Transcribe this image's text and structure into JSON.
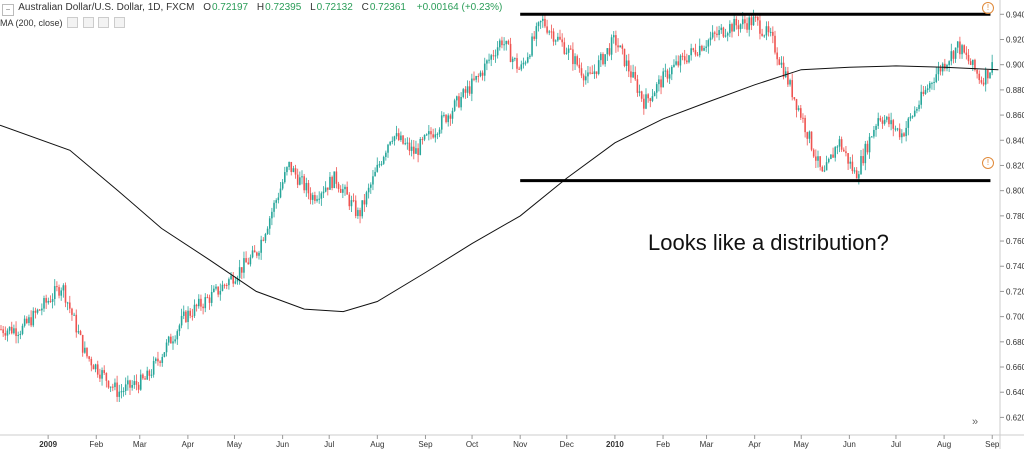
{
  "header": {
    "symbol_title": "Australian Dollar/U.S. Dollar, 1D, FXCM",
    "open_label": "O",
    "open_value": "0.72197",
    "high_label": "H",
    "high_value": "0.72395",
    "low_label": "L",
    "low_value": "0.72132",
    "close_label": "C",
    "close_value": "0.72361",
    "change": "+0.00164 (+0.23%)"
  },
  "indicator": {
    "label": "MA (200, close)"
  },
  "colors": {
    "up": "#26a69a",
    "down": "#ef5350",
    "ma": "#111111",
    "level_line": "#000000",
    "header_value": "#2a9d58"
  },
  "chart_data": {
    "type": "candlestick",
    "title": "Australian Dollar/U.S. Dollar, 1D, FXCM",
    "ylim": [
      0.61,
      0.945
    ],
    "y_ticks": [
      "0.94000",
      "0.92000",
      "0.90000",
      "0.88000",
      "0.86000",
      "0.84000",
      "0.82000",
      "0.80000",
      "0.78000",
      "0.76000",
      "0.74000",
      "0.72000",
      "0.70000",
      "0.68000",
      "0.66000",
      "0.64000",
      "0.62000"
    ],
    "y_tick_values": [
      0.94,
      0.92,
      0.9,
      0.88,
      0.86,
      0.84,
      0.82,
      0.8,
      0.78,
      0.76,
      0.74,
      0.72,
      0.7,
      0.68,
      0.66,
      0.64,
      0.62
    ],
    "x_ticks": [
      "2009",
      "Feb",
      "Mar",
      "Apr",
      "May",
      "Jun",
      "Jul",
      "Aug",
      "Sep",
      "Oct",
      "Nov",
      "Dec",
      "2010",
      "Feb",
      "Mar",
      "Apr",
      "May",
      "Jun",
      "Jul",
      "Aug",
      "Sep"
    ],
    "x_bold": [
      "2009",
      "2010"
    ],
    "price_path_dates": [
      "2008-12-15",
      "2009-01-10",
      "2009-01-25",
      "2009-02-15",
      "2009-03-05",
      "2009-03-30",
      "2009-04-20",
      "2009-05-15",
      "2009-06-05",
      "2009-06-20",
      "2009-07-05",
      "2009-07-20",
      "2009-08-10",
      "2009-08-25",
      "2009-09-15",
      "2009-10-05",
      "2009-10-20",
      "2009-11-01",
      "2009-11-15",
      "2009-12-01",
      "2009-12-15",
      "2010-01-01",
      "2010-01-20",
      "2010-02-05",
      "2010-02-25",
      "2010-03-15",
      "2010-04-01",
      "2010-04-12",
      "2010-05-01",
      "2010-05-15",
      "2010-05-25",
      "2010-06-05",
      "2010-06-20",
      "2010-07-05",
      "2010-07-25",
      "2010-08-10",
      "2010-08-25",
      "2010-09-05"
    ],
    "price_path_values": [
      0.69,
      0.725,
      0.67,
      0.64,
      0.65,
      0.7,
      0.72,
      0.75,
      0.82,
      0.795,
      0.81,
      0.78,
      0.845,
      0.83,
      0.86,
      0.89,
      0.92,
      0.895,
      0.935,
      0.912,
      0.888,
      0.92,
      0.87,
      0.895,
      0.915,
      0.93,
      0.935,
      0.92,
      0.86,
      0.81,
      0.84,
      0.812,
      0.86,
      0.845,
      0.89,
      0.915,
      0.888,
      0.905
    ],
    "ma_label": "MA (200, close)",
    "ma_dates": [
      "2008-12-01",
      "2009-01-15",
      "2009-02-15",
      "2009-03-15",
      "2009-04-15",
      "2009-05-15",
      "2009-06-15",
      "2009-07-10",
      "2009-08-01",
      "2009-09-01",
      "2009-10-01",
      "2009-11-01",
      "2009-12-01",
      "2010-01-01",
      "2010-02-01",
      "2010-03-01",
      "2010-04-01",
      "2010-05-01",
      "2010-06-01",
      "2010-07-01",
      "2010-08-01",
      "2010-09-05"
    ],
    "ma_values": [
      0.852,
      0.832,
      0.8,
      0.77,
      0.745,
      0.72,
      0.706,
      0.704,
      0.712,
      0.735,
      0.758,
      0.78,
      0.81,
      0.838,
      0.857,
      0.87,
      0.884,
      0.896,
      0.898,
      0.899,
      0.898,
      0.896
    ],
    "levels": [
      {
        "value": 0.94,
        "from": "2009-11-01",
        "to": "2010-09-05"
      },
      {
        "value": 0.808,
        "from": "2009-11-01",
        "to": "2010-09-05"
      }
    ],
    "annotation": "Looks like a distribution?"
  }
}
